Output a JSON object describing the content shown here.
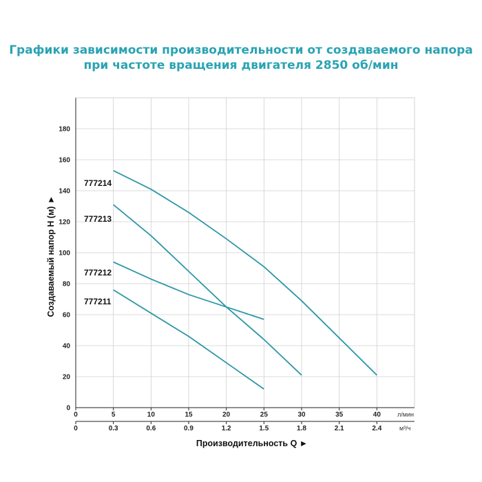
{
  "title": {
    "line1": "Графики зависимости производительности от создаваемого напора",
    "line2": "при частоте вращения двигателя 2850 об/мин"
  },
  "colors": {
    "title": "#2aa3b3",
    "curve": "#2d97a6",
    "grid": "#cfcfcf"
  },
  "chart_data": {
    "type": "line",
    "ylabel": "Создаваемый напор H (м) ►",
    "xlabel": "Производительность Q ►",
    "ylim": [
      0,
      200
    ],
    "xlim": [
      0,
      45
    ],
    "yticks": [
      0,
      20,
      40,
      60,
      80,
      100,
      120,
      140,
      160,
      180
    ],
    "xticks_primary": [
      0,
      5,
      10,
      15,
      20,
      25,
      30,
      35,
      40
    ],
    "xticks_secondary": [
      "0",
      "0.3",
      "0.6",
      "0.9",
      "1.2",
      "1.5",
      "1.8",
      "2.1",
      "2.4"
    ],
    "x_unit_primary": "л/мин",
    "x_unit_secondary": "м³/ч",
    "grid": true,
    "series": [
      {
        "name": "777214",
        "x": [
          5,
          10,
          15,
          20,
          25,
          30,
          35,
          40
        ],
        "y": [
          153,
          141,
          126,
          109,
          91,
          69,
          45,
          21
        ]
      },
      {
        "name": "777213",
        "x": [
          5,
          10,
          15,
          20,
          25,
          30
        ],
        "y": [
          131,
          111,
          88,
          65,
          44,
          21
        ]
      },
      {
        "name": "777212",
        "x": [
          5,
          10,
          15,
          20,
          25
        ],
        "y": [
          94,
          83,
          73,
          65,
          57
        ]
      },
      {
        "name": "777211",
        "x": [
          5,
          10,
          15,
          20,
          25
        ],
        "y": [
          76,
          61,
          46,
          29,
          12
        ]
      }
    ]
  }
}
